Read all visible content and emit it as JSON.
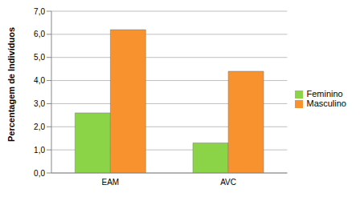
{
  "chart_data": {
    "type": "bar",
    "y_label": "Percentagem de Indivíduos",
    "categories": [
      "EAM",
      "AVC"
    ],
    "series": [
      {
        "name": "Feminino",
        "color": "#8bd447",
        "values": [
          2.6,
          1.3
        ]
      },
      {
        "name": "Masculino",
        "color": "#f7922e",
        "values": [
          6.2,
          4.4
        ]
      }
    ],
    "ylim": [
      0,
      7
    ],
    "yticks": [
      {
        "value": 0,
        "label": "0,0"
      },
      {
        "value": 1,
        "label": "1,0"
      },
      {
        "value": 2,
        "label": "2,0"
      },
      {
        "value": 3,
        "label": "3,0"
      },
      {
        "value": 4,
        "label": "4,0"
      },
      {
        "value": 5,
        "label": "5,0"
      },
      {
        "value": 6,
        "label": "6,0"
      },
      {
        "value": 7,
        "label": "7,0"
      }
    ],
    "grid": true,
    "legend": "right"
  }
}
